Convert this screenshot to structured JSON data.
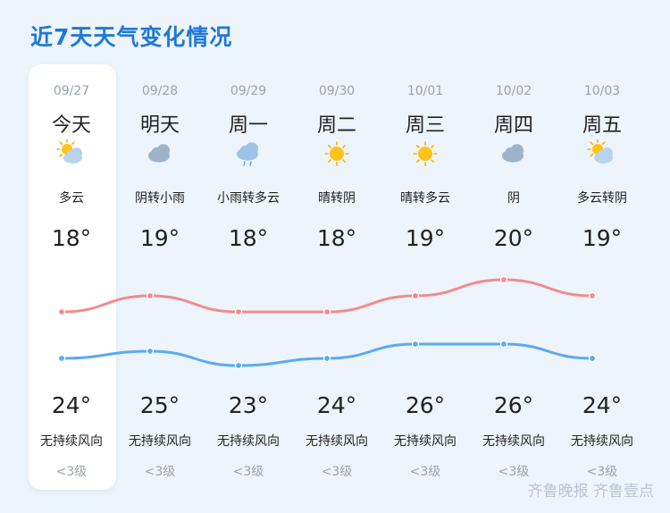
{
  "title": "近7天天气变化情况",
  "days": [
    {
      "date": "09/27",
      "name": "今天",
      "icon": "partly-cloudy-icon",
      "cond": "多云",
      "high": "18°",
      "low": "24°",
      "wind": "无持续风向",
      "level": "<3级"
    },
    {
      "date": "09/28",
      "name": "明天",
      "icon": "cloudy-icon",
      "cond": "阴转小雨",
      "high": "19°",
      "low": "25°",
      "wind": "无持续风向",
      "level": "<3级"
    },
    {
      "date": "09/29",
      "name": "周一",
      "icon": "light-rain-icon",
      "cond": "小雨转多云",
      "high": "18°",
      "low": "23°",
      "wind": "无持续风向",
      "level": "<3级"
    },
    {
      "date": "09/30",
      "name": "周二",
      "icon": "sunny-icon",
      "cond": "晴转阴",
      "high": "18°",
      "low": "24°",
      "wind": "无持续风向",
      "level": "<3级"
    },
    {
      "date": "10/01",
      "name": "周三",
      "icon": "sunny-icon",
      "cond": "晴转多云",
      "high": "19°",
      "low": "26°",
      "wind": "无持续风向",
      "level": "<3级"
    },
    {
      "date": "10/02",
      "name": "周四",
      "icon": "cloudy-icon",
      "cond": "阴",
      "high": "20°",
      "low": "26°",
      "wind": "无持续风向",
      "level": "<3级"
    },
    {
      "date": "10/03",
      "name": "周五",
      "icon": "partly-cloudy-icon",
      "cond": "多云转阴",
      "high": "19°",
      "low": "24°",
      "wind": "无持续风向",
      "level": "<3级"
    }
  ],
  "chart_data": {
    "type": "line",
    "categories": [
      "09/27",
      "09/28",
      "09/29",
      "09/30",
      "10/01",
      "10/02",
      "10/03"
    ],
    "series": [
      {
        "values": [
          18,
          19,
          18,
          18,
          19,
          20,
          19
        ],
        "color": "#f28b8b"
      },
      {
        "values": [
          24,
          25,
          23,
          24,
          26,
          26,
          24
        ],
        "color": "#5aaaf2"
      }
    ]
  },
  "watermark": "齐鲁晚报 齐鲁壹点"
}
